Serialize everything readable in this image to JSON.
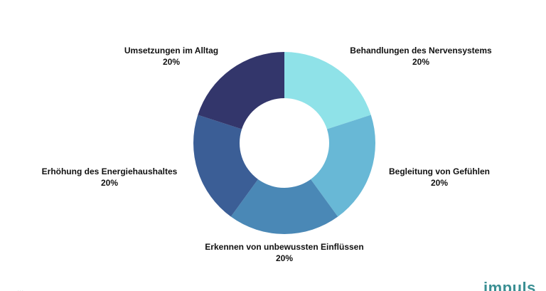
{
  "chart_data": {
    "type": "pie",
    "donut": true,
    "title": "",
    "legend": "none",
    "slices": [
      {
        "label": "Behandlungen des Nervensystems",
        "value": 20,
        "value_label": "20%",
        "color": "#8fe2e8"
      },
      {
        "label": "Begleitung von Gefühlen",
        "value": 20,
        "value_label": "20%",
        "color": "#68b8d6"
      },
      {
        "label": "Erkennen von unbewussten Einflüssen",
        "value": 20,
        "value_label": "20%",
        "color": "#4a88b6"
      },
      {
        "label": "Erhöhung des Energiehaushaltes",
        "value": 20,
        "value_label": "20%",
        "color": "#3b5e96"
      },
      {
        "label": "Umsetzungen im Alltag",
        "value": 20,
        "value_label": "20%",
        "color": "#33366b"
      }
    ]
  },
  "footer": {
    "left_text": "...",
    "logo_text": "impuls"
  }
}
